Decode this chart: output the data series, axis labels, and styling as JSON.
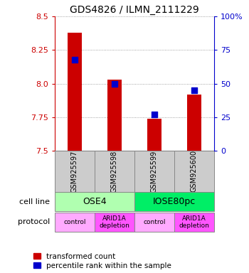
{
  "title": "GDS4826 / ILMN_2111229",
  "samples": [
    "GSM925597",
    "GSM925598",
    "GSM925599",
    "GSM925600"
  ],
  "red_values": [
    8.38,
    8.03,
    7.74,
    7.92
  ],
  "blue_values_pct": [
    68,
    50,
    27,
    45
  ],
  "ylim": [
    7.5,
    8.5
  ],
  "yticks_left": [
    7.5,
    7.75,
    8.0,
    8.25,
    8.5
  ],
  "yticks_right_pct": [
    0,
    25,
    50,
    75,
    100
  ],
  "cell_lines": [
    {
      "label": "OSE4",
      "cols": [
        0,
        1
      ],
      "color": "#b0ffb0"
    },
    {
      "label": "IOSE80pc",
      "cols": [
        2,
        3
      ],
      "color": "#00ee66"
    }
  ],
  "protocols": [
    {
      "label": "control",
      "col": 0,
      "color": "#ffaaff"
    },
    {
      "label": "ARID1A\ndepletion",
      "col": 1,
      "color": "#ff55ff"
    },
    {
      "label": "control",
      "col": 2,
      "color": "#ffaaff"
    },
    {
      "label": "ARID1A\ndepletion",
      "col": 3,
      "color": "#ff55ff"
    }
  ],
  "bar_color": "#cc0000",
  "dot_color": "#0000cc",
  "bar_width": 0.35,
  "dot_size": 30,
  "background_color": "#ffffff",
  "grid_color": "#888888",
  "label_color_left": "#cc0000",
  "label_color_right": "#0000cc",
  "sample_box_color": "#cccccc",
  "legend_red": "transformed count",
  "legend_blue": "percentile rank within the sample",
  "cell_line_label": "cell line",
  "protocol_label": "protocol"
}
